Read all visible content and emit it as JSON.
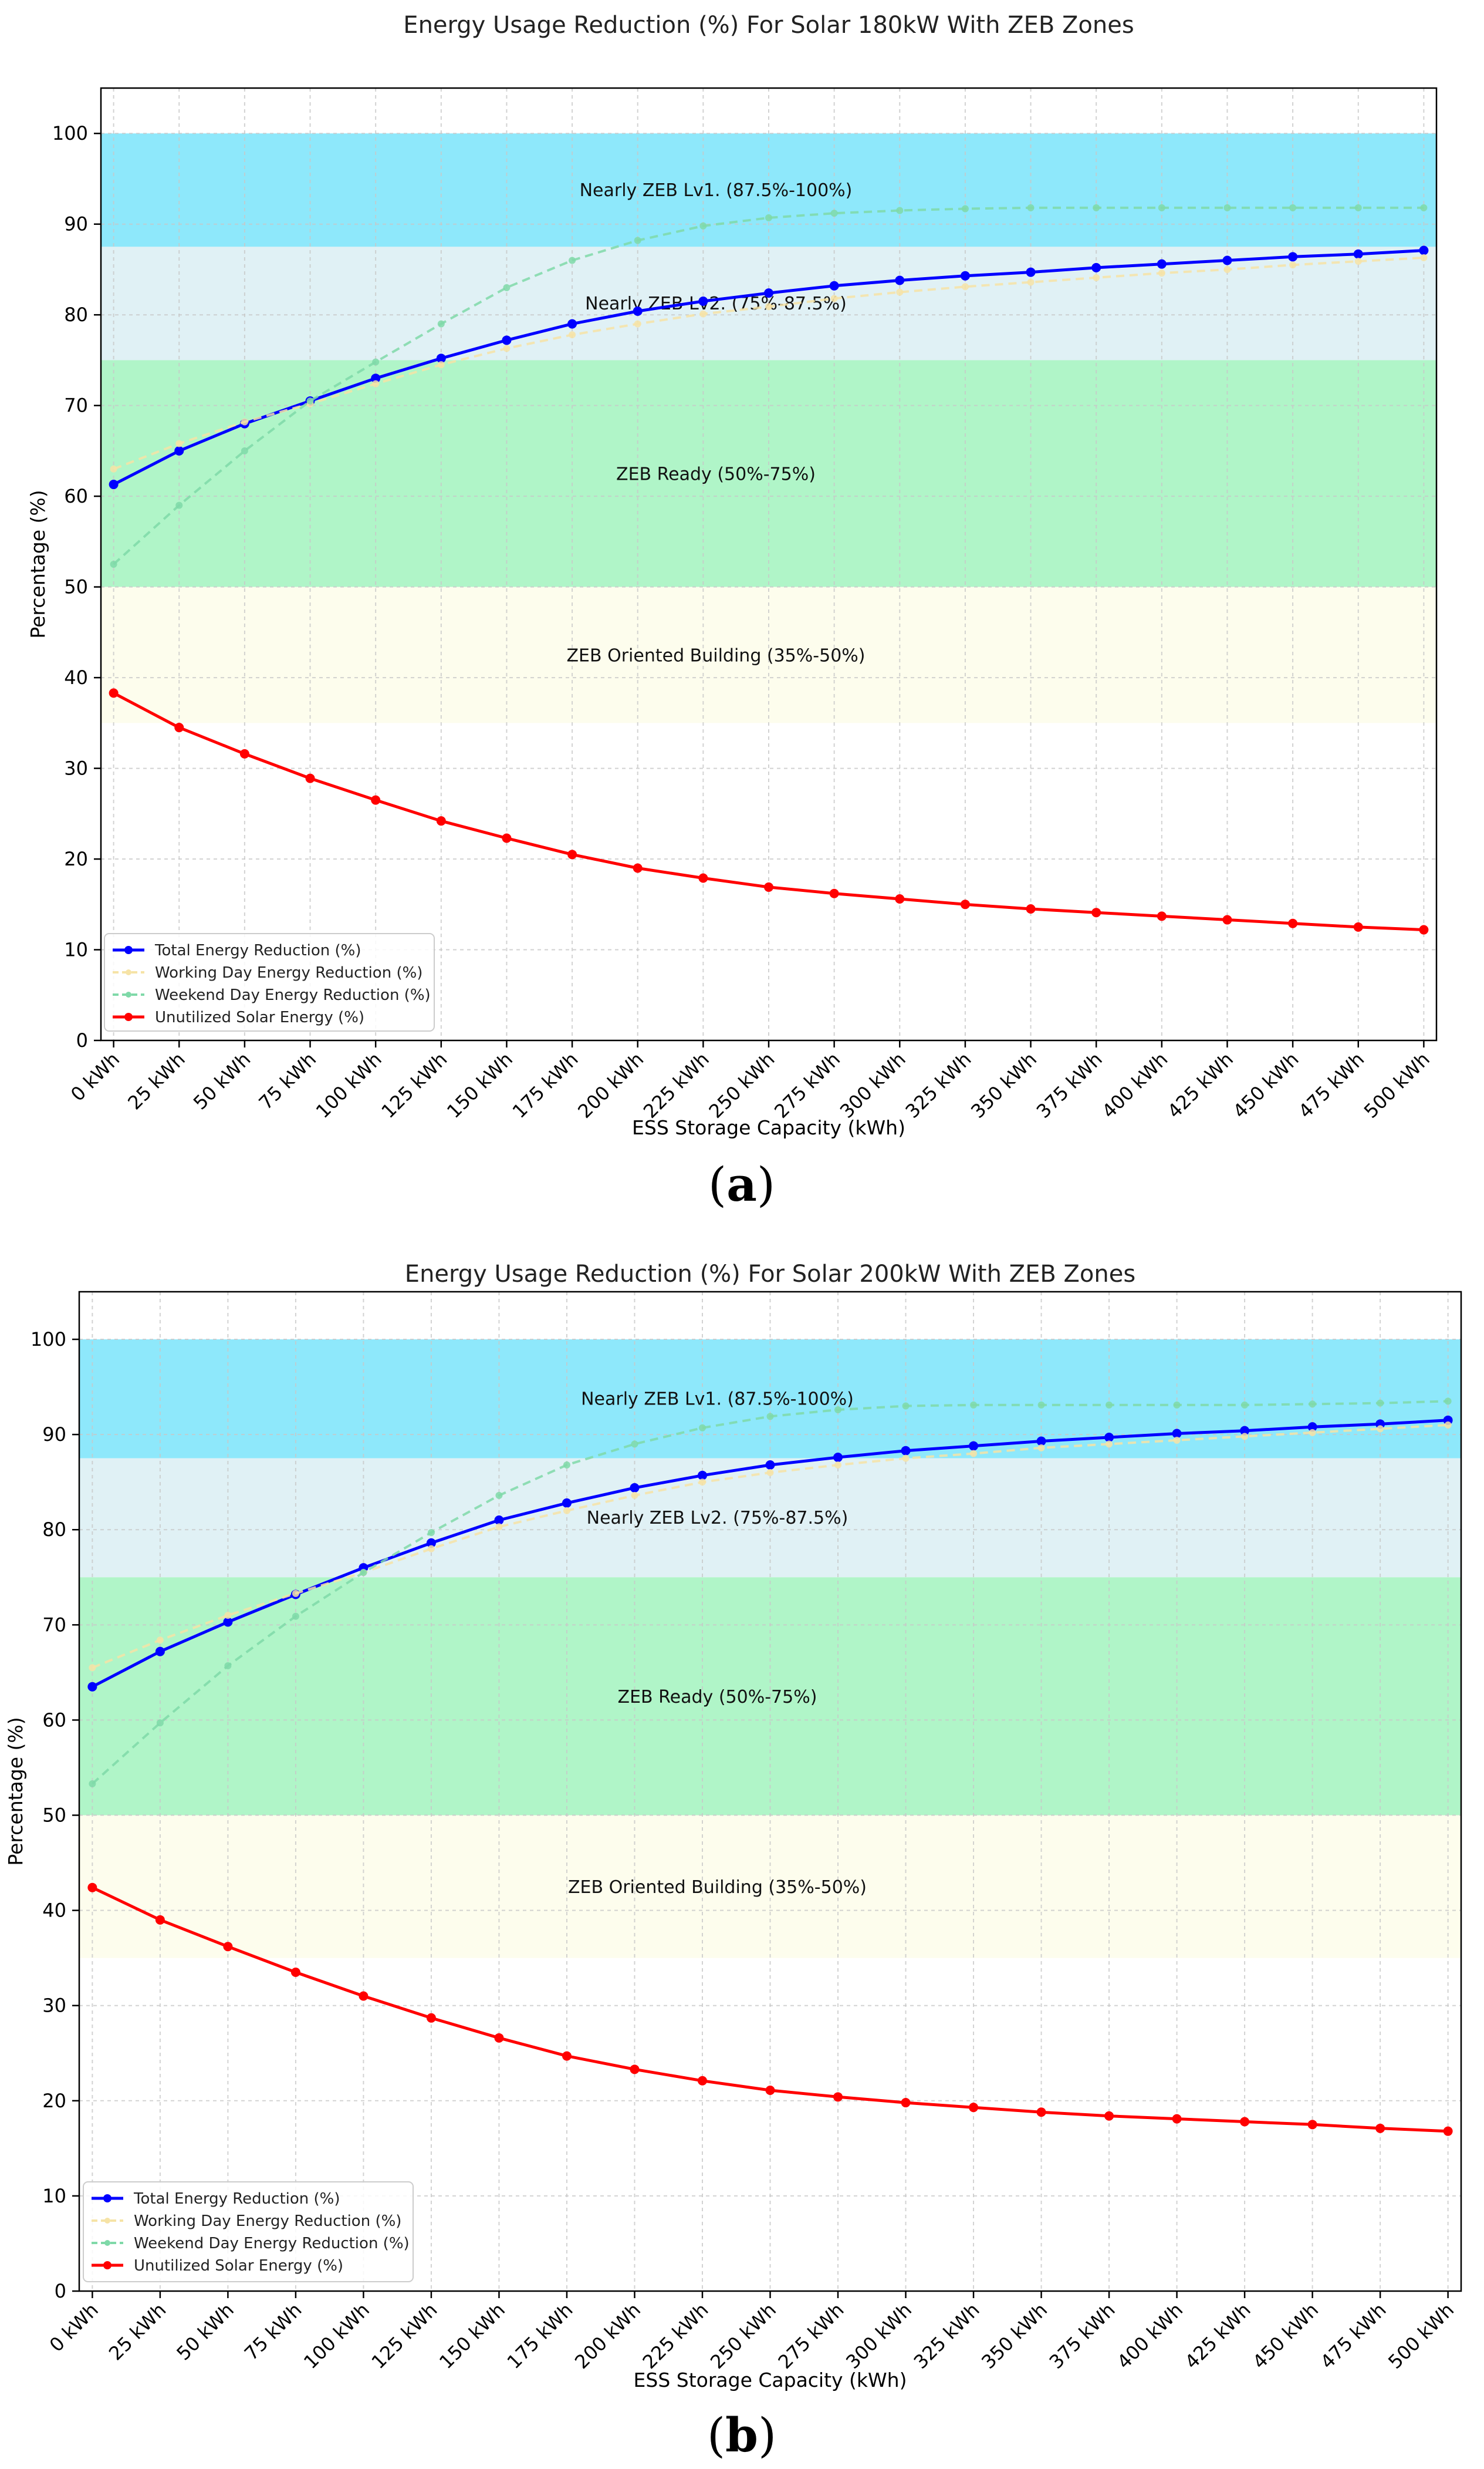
{
  "charts": [
    {
      "id": "a",
      "caption_letter": "a",
      "chart_data": {
        "type": "line",
        "title": "Energy Usage Reduction (%) For Solar 180kW With ZEB Zones",
        "xlabel": "ESS Storage Capacity (kWh)",
        "ylabel": "Percentage (%)",
        "ylim": [
          0,
          105
        ],
        "yticks": [
          0,
          10,
          20,
          30,
          40,
          50,
          60,
          70,
          80,
          90,
          100
        ],
        "grid": true,
        "legend_position": "bottom-left",
        "categories": [
          "0 kWh",
          "25 kWh",
          "50 kWh",
          "75 kWh",
          "100 kWh",
          "125 kWh",
          "150 kWh",
          "175 kWh",
          "200 kWh",
          "225 kWh",
          "250 kWh",
          "275 kWh",
          "300 kWh",
          "325 kWh",
          "350 kWh",
          "375 kWh",
          "400 kWh",
          "425 kWh",
          "450 kWh",
          "475 kWh",
          "500 kWh"
        ],
        "zones": [
          {
            "label": "Nearly ZEB Lv1. (87.5%-100%)",
            "from": 87.5,
            "to": 100,
            "color": "#8ee8fb",
            "label_y": 93.8
          },
          {
            "label": "Nearly ZEB Lv2. (75%-87.5%)",
            "from": 75,
            "to": 87.5,
            "color": "#e0f1f5",
            "label_y": 81.3
          },
          {
            "label": "ZEB Ready (50%-75%)",
            "from": 50,
            "to": 75,
            "color": "#b0f5c8",
            "label_y": 62.5
          },
          {
            "label": "ZEB Oriented Building (35%-50%)",
            "from": 35,
            "to": 50,
            "color": "#fdfded",
            "label_y": 42.5
          }
        ],
        "series": [
          {
            "name": "Total Energy Reduction (%)",
            "color": "#0000ff",
            "dashed": false,
            "width": 5,
            "marker": 8,
            "values": [
              61.3,
              65.0,
              68.0,
              70.5,
              73.0,
              75.2,
              77.2,
              79.0,
              80.4,
              81.5,
              82.4,
              83.2,
              83.8,
              84.3,
              84.7,
              85.2,
              85.6,
              86.0,
              86.4,
              86.7,
              87.1
            ]
          },
          {
            "name": "Working Day Energy Reduction (%)",
            "color": "#f6e3a6",
            "dashed": true,
            "width": 4,
            "marker": 6,
            "values": [
              63.0,
              65.8,
              68.2,
              70.2,
              72.4,
              74.5,
              76.3,
              77.8,
              79.0,
              80.1,
              80.9,
              81.8,
              82.5,
              83.1,
              83.6,
              84.1,
              84.6,
              85.0,
              85.5,
              85.9,
              86.3
            ]
          },
          {
            "name": "Weekend Day Energy Reduction (%)",
            "color": "#7fd9a8",
            "dashed": true,
            "width": 4,
            "marker": 6,
            "values": [
              52.5,
              59.0,
              65.0,
              70.5,
              74.8,
              79.0,
              83.0,
              86.0,
              88.2,
              89.8,
              90.7,
              91.2,
              91.5,
              91.7,
              91.8,
              91.8,
              91.8,
              91.8,
              91.8,
              91.8,
              91.8
            ]
          },
          {
            "name": "Unutilized Solar Energy (%)",
            "color": "#ff0000",
            "dashed": false,
            "width": 5,
            "marker": 8,
            "values": [
              38.3,
              34.5,
              31.6,
              28.9,
              26.5,
              24.2,
              22.3,
              20.5,
              19.0,
              17.9,
              16.9,
              16.2,
              15.6,
              15.0,
              14.5,
              14.1,
              13.7,
              13.3,
              12.9,
              12.5,
              12.2
            ]
          }
        ]
      }
    },
    {
      "id": "b",
      "caption_letter": "b",
      "chart_data": {
        "type": "line",
        "title": "Energy Usage Reduction (%) For Solar 200kW With ZEB Zones",
        "xlabel": "ESS Storage Capacity (kWh)",
        "ylabel": "Percentage (%)",
        "ylim": [
          0,
          105
        ],
        "yticks": [
          0,
          10,
          20,
          30,
          40,
          50,
          60,
          70,
          80,
          90,
          100
        ],
        "grid": true,
        "legend_position": "bottom-left",
        "categories": [
          "0 kWh",
          "25 kWh",
          "50 kWh",
          "75 kWh",
          "100 kWh",
          "125 kWh",
          "150 kWh",
          "175 kWh",
          "200 kWh",
          "225 kWh",
          "250 kWh",
          "275 kWh",
          "300 kWh",
          "325 kWh",
          "350 kWh",
          "375 kWh",
          "400 kWh",
          "425 kWh",
          "450 kWh",
          "475 kWh",
          "500 kWh"
        ],
        "zones": [
          {
            "label": "Nearly ZEB Lv1. (87.5%-100%)",
            "from": 87.5,
            "to": 100,
            "color": "#8ee8fb",
            "label_y": 93.8
          },
          {
            "label": "Nearly ZEB Lv2. (75%-87.5%)",
            "from": 75,
            "to": 87.5,
            "color": "#e0f1f5",
            "label_y": 81.3
          },
          {
            "label": "ZEB Ready (50%-75%)",
            "from": 50,
            "to": 75,
            "color": "#b0f5c8",
            "label_y": 62.5
          },
          {
            "label": "ZEB Oriented Building (35%-50%)",
            "from": 35,
            "to": 50,
            "color": "#fdfded",
            "label_y": 42.5
          }
        ],
        "series": [
          {
            "name": "Total Energy Reduction (%)",
            "color": "#0000ff",
            "dashed": false,
            "width": 5,
            "marker": 8,
            "values": [
              63.5,
              67.2,
              70.3,
              73.2,
              76.0,
              78.6,
              81.0,
              82.8,
              84.4,
              85.7,
              86.8,
              87.6,
              88.3,
              88.8,
              89.3,
              89.7,
              90.1,
              90.4,
              90.8,
              91.1,
              91.5
            ]
          },
          {
            "name": "Working Day Energy Reduction (%)",
            "color": "#f6e3a6",
            "dashed": true,
            "width": 4,
            "marker": 6,
            "values": [
              65.5,
              68.4,
              71.0,
              73.3,
              75.5,
              78.0,
              80.3,
              82.0,
              83.6,
              85.0,
              86.0,
              86.8,
              87.5,
              88.0,
              88.6,
              89.0,
              89.4,
              89.8,
              90.2,
              90.6,
              91.0
            ]
          },
          {
            "name": "Weekend Day Energy Reduction (%)",
            "color": "#7fd9a8",
            "dashed": true,
            "width": 4,
            "marker": 6,
            "values": [
              53.3,
              59.7,
              65.7,
              70.9,
              75.5,
              79.7,
              83.6,
              86.8,
              89.0,
              90.7,
              91.9,
              92.6,
              93.0,
              93.1,
              93.1,
              93.1,
              93.1,
              93.1,
              93.2,
              93.3,
              93.5
            ]
          },
          {
            "name": "Unutilized Solar Energy (%)",
            "color": "#ff0000",
            "dashed": false,
            "width": 5,
            "marker": 8,
            "values": [
              42.4,
              39.0,
              36.2,
              33.5,
              31.0,
              28.7,
              26.6,
              24.7,
              23.3,
              22.1,
              21.1,
              20.4,
              19.8,
              19.3,
              18.8,
              18.4,
              18.1,
              17.8,
              17.5,
              17.1,
              16.8
            ]
          }
        ]
      }
    }
  ]
}
